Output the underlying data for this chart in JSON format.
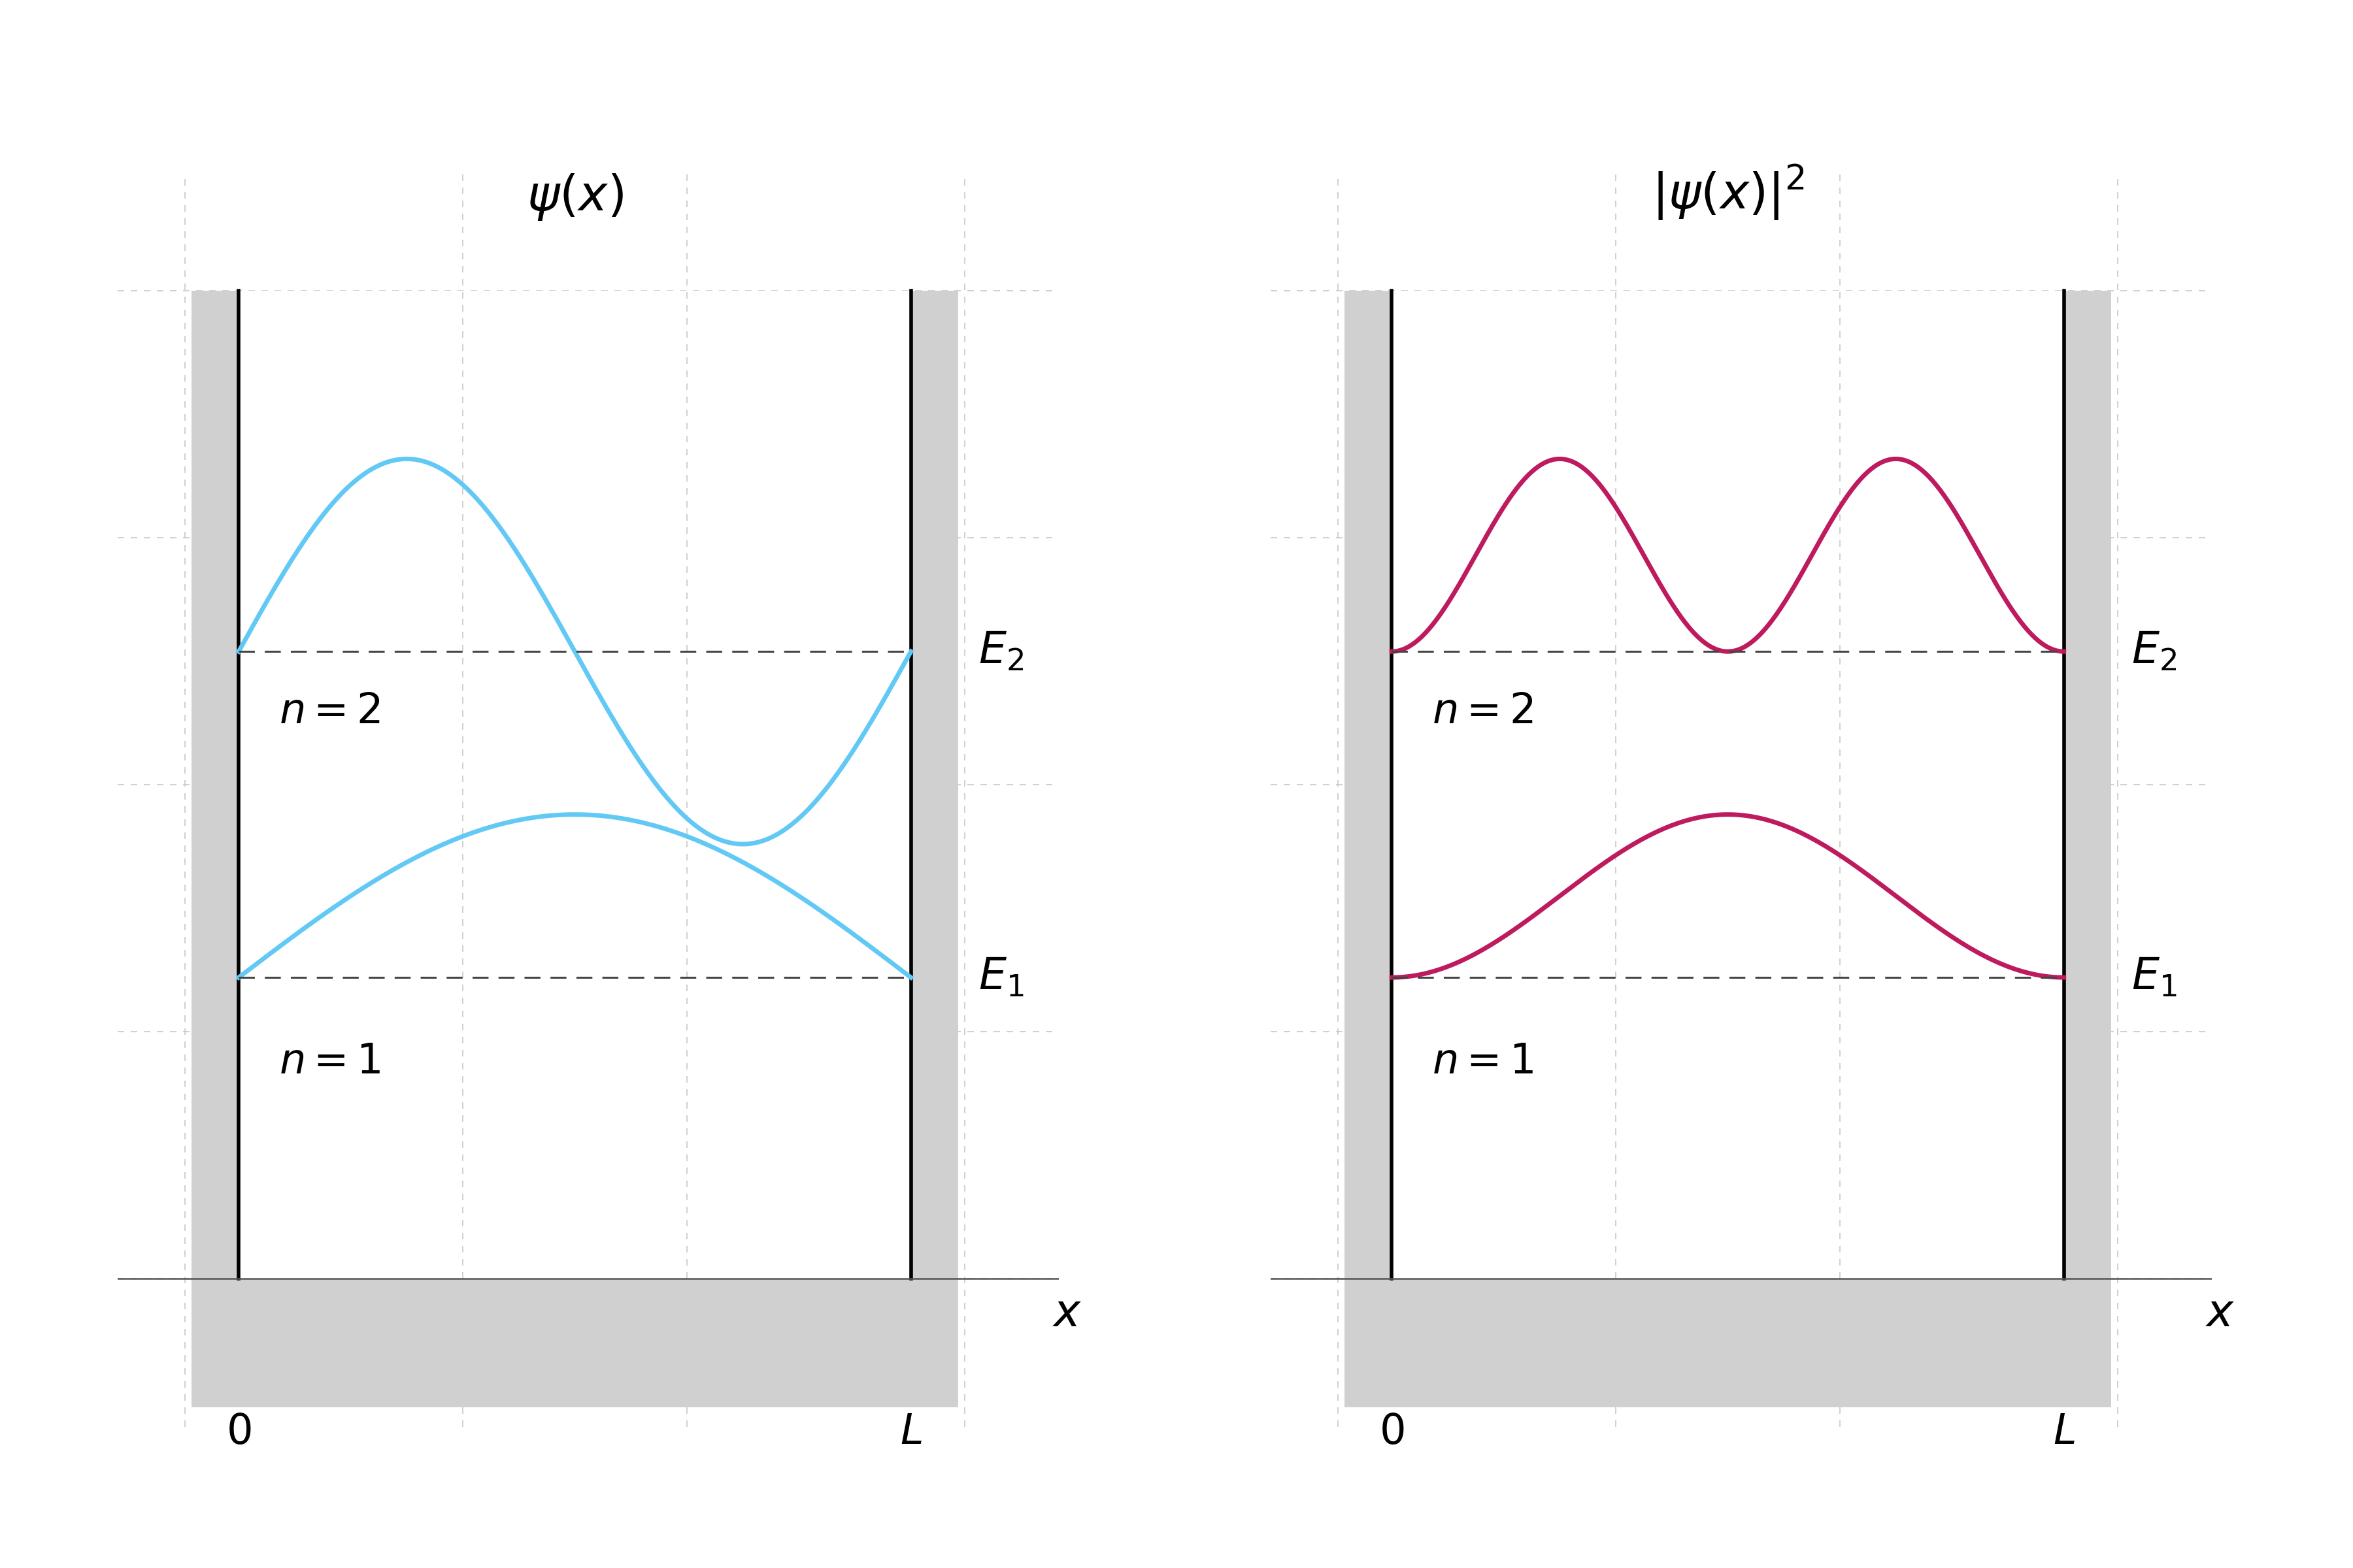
{
  "fig_width": 36.0,
  "fig_height": 24.0,
  "background_color": "#ffffff",
  "wall_color": "#d0d0d0",
  "floor_color": "#d0d0d0",
  "wall_linecolor": "#000000",
  "grid_color": "#c8c8c8",
  "interior_color": "#ffffff",
  "psi_color": "#62c9f5",
  "psi2_color": "#be1a5e",
  "dashed_color": "#444444",
  "title_psi": "$\\psi(x)$",
  "title_psi2": "$|\\psi(x)|^2$",
  "xlabel": "$x$",
  "label_0": "$0$",
  "label_L": "$L$",
  "label_E1": "$E_1$",
  "label_E2": "$E_2$",
  "label_n1": "$n = 1$",
  "label_n2": "$n = 2$",
  "n_points": 500,
  "E1_level": 0.305,
  "E2_level": 0.635,
  "amplitude_n1": 0.165,
  "amplitude_n2": 0.195,
  "line_width": 5.0,
  "dashed_linewidth": 2.2,
  "wall_linewidth": 4.0,
  "title_fontsize": 54,
  "label_fontsize": 50,
  "tick_fontsize": 46,
  "annotation_fontsize": 48,
  "n_label_fontsize": 46
}
